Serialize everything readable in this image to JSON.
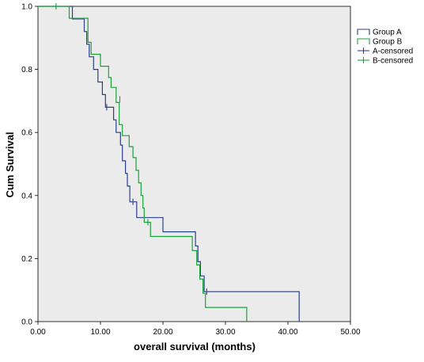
{
  "chart_data": {
    "type": "step-line",
    "xlabel": "overall survival (months)",
    "ylabel": "Cum Survival",
    "xlim": [
      0,
      50
    ],
    "ylim": [
      0,
      1
    ],
    "x_ticks": [
      "0.00",
      "10.00",
      "20.00",
      "30.00",
      "40.00",
      "50.00"
    ],
    "y_ticks": [
      "0.0",
      "0.2",
      "0.4",
      "0.6",
      "0.8",
      "1.0"
    ],
    "grid": false,
    "legend_position": "top-right outside plot",
    "plot_background": "#ebebeb",
    "legend": [
      {
        "label": "Group A",
        "kind": "line",
        "color": "#2c3f8c"
      },
      {
        "label": "Group B",
        "kind": "line",
        "color": "#1aa33a"
      },
      {
        "label": "A-censored",
        "kind": "censor",
        "color": "#2c3f8c"
      },
      {
        "label": "B-censored",
        "kind": "censor",
        "color": "#1aa33a"
      }
    ],
    "series": [
      {
        "name": "Group A",
        "color": "#2c3f8c",
        "steps": [
          [
            0,
            1.0
          ],
          [
            5.5,
            0.96
          ],
          [
            7.4,
            0.92
          ],
          [
            7.8,
            0.88
          ],
          [
            8.2,
            0.84
          ],
          [
            8.9,
            0.8
          ],
          [
            9.6,
            0.76
          ],
          [
            10.3,
            0.72
          ],
          [
            10.8,
            0.68
          ],
          [
            12.1,
            0.64
          ],
          [
            12.5,
            0.6
          ],
          [
            13.2,
            0.56
          ],
          [
            13.5,
            0.51
          ],
          [
            14.0,
            0.47
          ],
          [
            14.3,
            0.43
          ],
          [
            14.7,
            0.38
          ],
          [
            15.8,
            0.33
          ],
          [
            20.0,
            0.285
          ],
          [
            25.2,
            0.24
          ],
          [
            25.6,
            0.19
          ],
          [
            26.0,
            0.145
          ],
          [
            26.6,
            0.095
          ],
          [
            41.8,
            0.0
          ]
        ],
        "end_x": 41.8,
        "censored": [
          [
            11.0,
            0.68
          ],
          [
            15.2,
            0.38
          ],
          [
            27.0,
            0.095
          ]
        ]
      },
      {
        "name": "Group B",
        "color": "#1aa33a",
        "steps": [
          [
            0,
            1.0
          ],
          [
            5.0,
            0.962
          ],
          [
            8.0,
            0.886
          ],
          [
            8.5,
            0.848
          ],
          [
            10.0,
            0.81
          ],
          [
            11.3,
            0.774
          ],
          [
            11.7,
            0.743
          ],
          [
            12.5,
            0.695
          ],
          [
            13.0,
            0.625
          ],
          [
            13.5,
            0.59
          ],
          [
            14.6,
            0.555
          ],
          [
            15.2,
            0.52
          ],
          [
            15.7,
            0.48
          ],
          [
            16.1,
            0.44
          ],
          [
            16.5,
            0.4
          ],
          [
            16.8,
            0.36
          ],
          [
            17.0,
            0.315
          ],
          [
            18.0,
            0.27
          ],
          [
            24.7,
            0.225
          ],
          [
            25.4,
            0.18
          ],
          [
            25.9,
            0.135
          ],
          [
            26.4,
            0.09
          ],
          [
            26.8,
            0.045
          ],
          [
            33.4,
            0.0
          ]
        ],
        "end_x": 33.4,
        "censored": [
          [
            2.9,
            1.0
          ],
          [
            13.1,
            0.705
          ],
          [
            17.6,
            0.315
          ]
        ]
      }
    ]
  }
}
